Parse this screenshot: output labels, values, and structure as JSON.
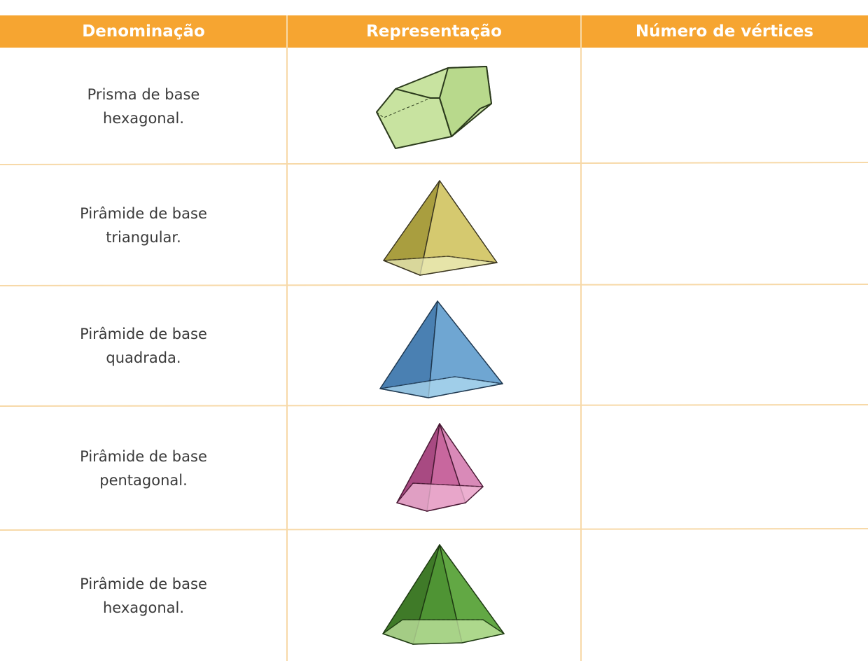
{
  "table": {
    "header": [
      "Denominação",
      "Representação",
      "Número de vértices"
    ],
    "rows": [
      [
        "Prisma de base\nhexagonal."
      ],
      [
        "Pirâmide de base\ntriangular."
      ],
      [
        "Pirâmide de base\nquadrada."
      ],
      [
        "Pirâmide de base\npentagonal."
      ],
      [
        "Pirâmide de base\nhexagonal."
      ]
    ]
  }
}
